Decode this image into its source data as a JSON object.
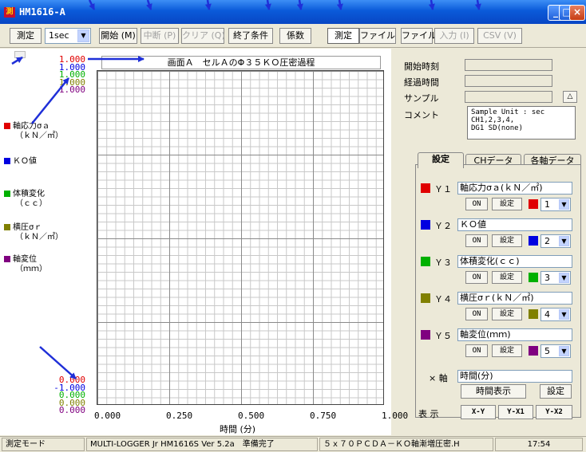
{
  "window": {
    "title": "HM1616-A",
    "icon_text": "測"
  },
  "toolbar": {
    "measure_label": "測定",
    "interval_value": "1sec",
    "start_label": "開始 (M)",
    "pause_label": "中断 (P)",
    "clear_label": "クリア (Q)",
    "end_condition_label": "終了条件",
    "coefficient_label": "係数",
    "mode_measure_label": "測定",
    "mode_file_label": "ファイル",
    "file_label": "ファイル",
    "input_label": "入力 (I)",
    "csv_label": "CSV (V)"
  },
  "graph": {
    "title": "画面Ａ　セルＡのΦ３５ＫＯ圧密過程",
    "y_top_labels": [
      {
        "text": "1.000",
        "color": "#e00000"
      },
      {
        "text": "1.000",
        "color": "#0000e0"
      },
      {
        "text": "1.000",
        "color": "#00b000"
      },
      {
        "text": "1.000",
        "color": "#808000"
      },
      {
        "text": "1.000",
        "color": "#800080"
      }
    ],
    "y_bottom_labels": [
      {
        "text": "0.000",
        "color": "#e00000"
      },
      {
        "text": "-1.000",
        "color": "#0000e0"
      },
      {
        "text": "0.000",
        "color": "#00b000"
      },
      {
        "text": "0.000",
        "color": "#808000"
      },
      {
        "text": "0.000",
        "color": "#800080"
      }
    ],
    "x_ticks": [
      "0.000",
      "0.250",
      "0.500",
      "0.750",
      "1.000"
    ],
    "x_label": "時間 (分)"
  },
  "legend": [
    {
      "name": "軸応力σａ",
      "unit": "（ｋＮ／㎡）",
      "color": "#e00000"
    },
    {
      "name": "ＫＯ値",
      "unit": "",
      "color": "#0000e0"
    },
    {
      "name": "体積変化",
      "unit": "（ｃｃ）",
      "color": "#00b000"
    },
    {
      "name": "横圧σｒ",
      "unit": "（ｋＮ／㎡）",
      "color": "#808000"
    },
    {
      "name": "軸変位",
      "unit": "（ｍｍ）",
      "color": "#800080"
    }
  ],
  "info": {
    "start_time_label": "開始時刻",
    "elapsed_label": "経過時間",
    "sample_label": "サンプル",
    "comment_label": "コメント",
    "sample_button": "△",
    "comment_text": "Sample Unit : sec\nCH1,2,3,4,\nDG1 SD(none)"
  },
  "tabs": [
    {
      "label": "設定"
    },
    {
      "label": "CHデータ"
    },
    {
      "label": "各軸データ"
    }
  ],
  "series": [
    {
      "axis": "Ｙ１",
      "name": "軸応力σａ(ｋＮ／㎡)",
      "color": "#e00000",
      "num": "1"
    },
    {
      "axis": "Ｙ２",
      "name": "ＫＯ値",
      "color": "#0000e0",
      "num": "2"
    },
    {
      "axis": "Ｙ３",
      "name": "体積変化(ｃｃ)",
      "color": "#00b000",
      "num": "3"
    },
    {
      "axis": "Ｙ４",
      "name": "横圧σｒ(ｋＮ／㎡)",
      "color": "#808000",
      "num": "4"
    },
    {
      "axis": "Ｙ５",
      "name": "軸変位(ｍｍ)",
      "color": "#800080",
      "num": "5"
    }
  ],
  "series_controls": {
    "on_label": "ON",
    "settings_label": "設定"
  },
  "xaxis": {
    "label": "×  軸",
    "name": "時間(分)",
    "display_button": "時間表示",
    "settings_button": "設定"
  },
  "display": {
    "label": "表 示",
    "buttons": [
      "X-Y",
      "Y-X1",
      "Y-X2"
    ]
  },
  "status": {
    "mode": "測定モード",
    "version": "MULTI-LOGGER Jr HM1616S Ver 5.2a　準備完了",
    "file": "５ｘ７０ＰＣＤＡ－ＫＯ軸漸増圧密.H",
    "time": "17:54"
  },
  "colors": {
    "annotation_arrow": "#1f2fd8"
  }
}
